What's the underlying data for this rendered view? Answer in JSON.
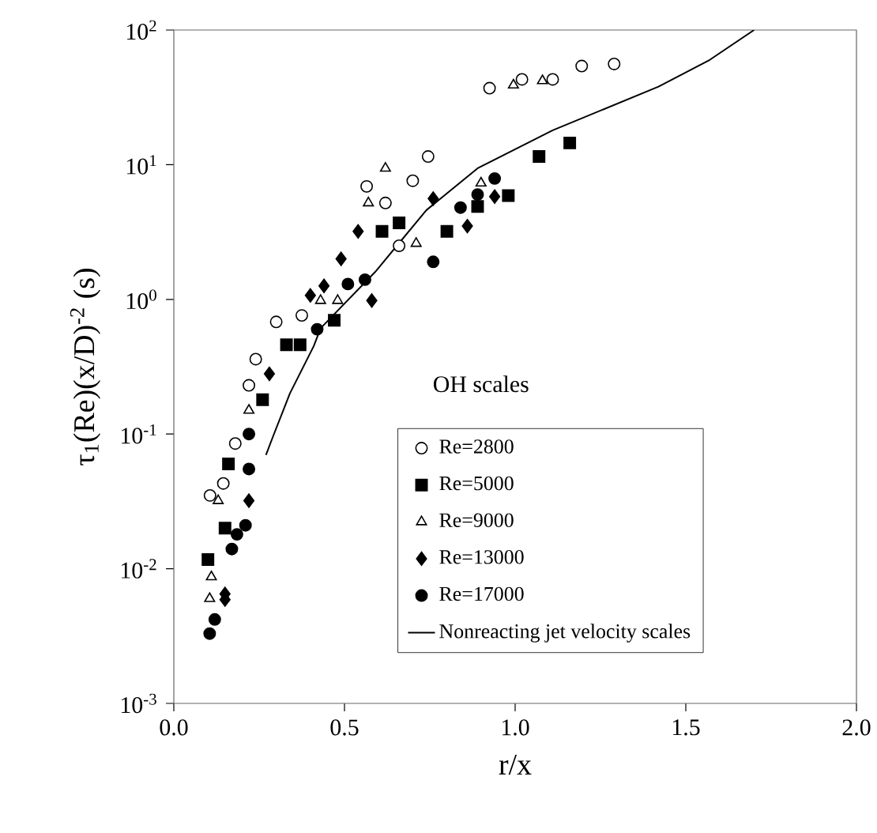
{
  "chart_data": {
    "type": "scatter",
    "xlabel": "r/x",
    "ylabel": "τ$_{1}$(Re)(x/D)$^{-2}$ (s)",
    "legend_title": "OH scales",
    "log": "y",
    "legend": "bottom right",
    "grid": false,
    "xlim": [
      0,
      2
    ],
    "ylim": [
      0.001,
      100
    ],
    "xticks": [
      {
        "value": 0,
        "label": "0.0"
      },
      {
        "value": 0.5,
        "label": "0.5"
      },
      {
        "value": 1,
        "label": "1.0"
      },
      {
        "value": 1.5,
        "label": "1.5"
      },
      {
        "value": 2,
        "label": "2.0"
      }
    ],
    "yticks": [
      {
        "value": 0.001,
        "label": "10$^{-3}$"
      },
      {
        "value": 0.01,
        "label": "10$^{-2}$"
      },
      {
        "value": 0.1,
        "label": "10$^{-1}$"
      },
      {
        "value": 1,
        "label": "10$^{0}$"
      },
      {
        "value": 10,
        "label": "10$^{1}$"
      },
      {
        "value": 100,
        "label": "10$^{2}$"
      }
    ],
    "series": [
      {
        "name": "Re=2800",
        "type": "scatter",
        "marker": "circle-open",
        "color": "#000000",
        "x": [
          0.106,
          0.145,
          0.18,
          0.22,
          0.24,
          0.3,
          0.375,
          0.565,
          0.62,
          0.66,
          0.7,
          0.745,
          0.925,
          1.02,
          1.11,
          1.195,
          1.29
        ],
        "values": [
          0.035,
          0.043,
          0.085,
          0.23,
          0.36,
          0.68,
          0.76,
          6.9,
          5.2,
          2.5,
          7.6,
          11.5,
          37,
          43,
          43,
          54,
          56
        ]
      },
      {
        "name": "Re=5000",
        "type": "scatter",
        "marker": "square",
        "color": "#000000",
        "x": [
          0.1,
          0.15,
          0.16,
          0.26,
          0.33,
          0.37,
          0.47,
          0.61,
          0.66,
          0.8,
          0.89,
          0.98,
          1.07,
          1.16
        ],
        "values": [
          0.0117,
          0.02,
          0.06,
          0.18,
          0.46,
          0.46,
          0.7,
          3.2,
          3.7,
          3.2,
          4.9,
          5.9,
          11.5,
          14.5
        ]
      },
      {
        "name": "Re=9000",
        "type": "scatter",
        "marker": "triangle-open",
        "color": "#000000",
        "x": [
          0.105,
          0.11,
          0.13,
          0.22,
          0.43,
          0.48,
          0.57,
          0.62,
          0.71,
          0.9,
          0.995,
          1.08
        ],
        "values": [
          0.006,
          0.0087,
          0.032,
          0.15,
          0.98,
          0.98,
          5.2,
          9.4,
          2.6,
          7.3,
          39,
          42
        ]
      },
      {
        "name": "Re=13000",
        "type": "scatter",
        "marker": "diamond",
        "color": "#000000",
        "x": [
          0.15,
          0.15,
          0.22,
          0.28,
          0.4,
          0.44,
          0.49,
          0.54,
          0.58,
          0.76,
          0.86,
          0.94
        ],
        "values": [
          0.0059,
          0.0065,
          0.032,
          0.28,
          1.07,
          1.26,
          2.0,
          3.2,
          0.98,
          5.6,
          3.5,
          5.8
        ]
      },
      {
        "name": "Re=17000",
        "type": "scatter",
        "marker": "circle",
        "color": "#000000",
        "x": [
          0.105,
          0.12,
          0.17,
          0.185,
          0.21,
          0.22,
          0.22,
          0.42,
          0.51,
          0.56,
          0.76,
          0.84,
          0.89,
          0.94
        ],
        "values": [
          0.0033,
          0.0042,
          0.014,
          0.018,
          0.021,
          0.055,
          0.1,
          0.6,
          1.3,
          1.4,
          1.9,
          4.8,
          6,
          7.9
        ]
      },
      {
        "name": "Nonreacting jet velocity scales",
        "type": "line",
        "marker": "none",
        "line_style": "solid",
        "color": "#000000",
        "x": [
          0.27,
          0.29,
          0.34,
          0.41,
          0.43,
          0.59,
          0.74,
          0.89,
          1.11,
          1.42,
          1.57,
          1.7
        ],
        "values": [
          0.07,
          0.095,
          0.2,
          0.45,
          0.61,
          1.6,
          4.6,
          9.4,
          18,
          38,
          60,
          100
        ]
      }
    ]
  }
}
